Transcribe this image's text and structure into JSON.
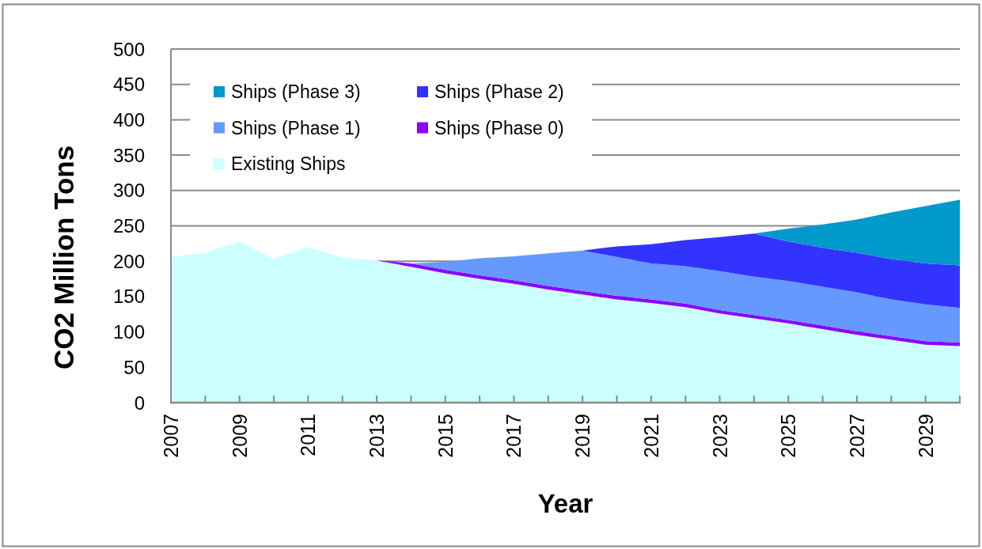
{
  "chart_data": {
    "type": "area",
    "stacked": true,
    "xlabel": "Year",
    "ylabel": "CO2 Million Tons",
    "x": [
      2007,
      2008,
      2009,
      2010,
      2011,
      2012,
      2013,
      2014,
      2015,
      2016,
      2017,
      2018,
      2019,
      2020,
      2021,
      2022,
      2023,
      2024,
      2025,
      2026,
      2027,
      2028,
      2029,
      2030
    ],
    "xlim": [
      2007,
      2030
    ],
    "xticks": [
      2007,
      {
        "value": 2008,
        "label": null
      },
      2009,
      {
        "value": 2010,
        "label": null
      },
      2011,
      {
        "value": 2012,
        "label": null
      },
      2013,
      {
        "value": 2014,
        "label": null
      },
      2015,
      {
        "value": 2016,
        "label": null
      },
      2017,
      {
        "value": 2018,
        "label": null
      },
      2019,
      {
        "value": 2020,
        "label": null
      },
      2021,
      {
        "value": 2022,
        "label": null
      },
      2023,
      {
        "value": 2024,
        "label": null
      },
      2025,
      {
        "value": 2026,
        "label": null
      },
      2027,
      {
        "value": 2028,
        "label": null
      },
      2029,
      {
        "value": 2030,
        "label": null
      }
    ],
    "ylim": [
      0,
      500
    ],
    "yticks": [
      0,
      50,
      100,
      150,
      200,
      250,
      300,
      350,
      400,
      450,
      500
    ],
    "grid": "y",
    "legend": "top left",
    "series": [
      {
        "name": "Existing Ships",
        "color": "#ccffff",
        "values": [
          206,
          212,
          228,
          203,
          220,
          205,
          201,
          192,
          183,
          175,
          168,
          160,
          153,
          146,
          141,
          135,
          126,
          119,
          112,
          104,
          96,
          89,
          82,
          80
        ]
      },
      {
        "name": "Ships (Phase 0)",
        "color": "#8b00ff",
        "values": [
          null,
          null,
          null,
          null,
          null,
          null,
          0,
          5,
          5,
          5,
          5,
          5,
          5,
          5,
          5,
          5,
          5,
          5,
          5,
          5,
          5,
          5,
          5,
          5
        ]
      },
      {
        "name": "Ships (Phase 1)",
        "color": "#6699ff",
        "values": [
          null,
          null,
          null,
          null,
          null,
          null,
          null,
          0,
          11,
          24,
          34,
          46,
          57,
          55,
          51,
          53,
          55,
          54,
          55,
          55,
          55,
          52,
          52,
          49
        ]
      },
      {
        "name": "Ships (Phase 2)",
        "color": "#3333ff",
        "values": [
          null,
          null,
          null,
          null,
          null,
          null,
          null,
          null,
          null,
          null,
          null,
          null,
          0,
          15,
          27,
          37,
          48,
          61,
          56,
          55,
          56,
          57,
          58,
          60
        ]
      },
      {
        "name": "Ships (Phase 3)",
        "color": "#0099cc",
        "values": [
          null,
          null,
          null,
          null,
          null,
          null,
          null,
          null,
          null,
          null,
          null,
          null,
          null,
          null,
          null,
          null,
          null,
          0,
          18,
          33,
          47,
          66,
          81,
          93
        ]
      }
    ]
  }
}
